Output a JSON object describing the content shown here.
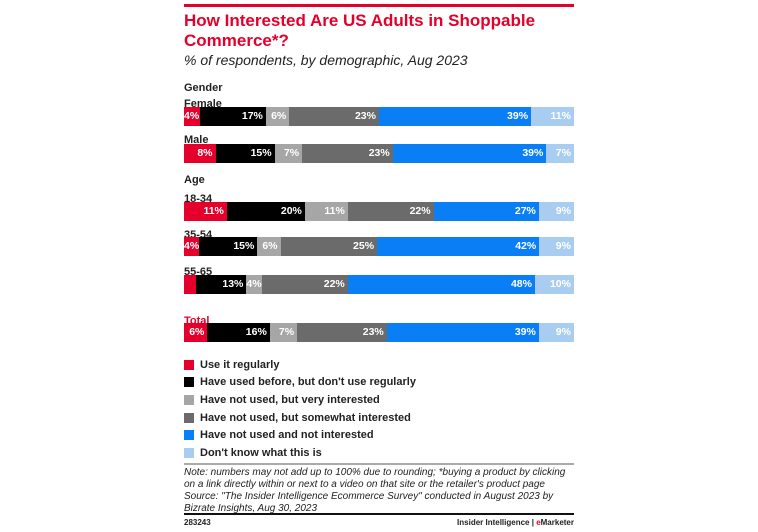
{
  "header": {
    "title": "How Interested Are US Adults in Shoppable Commerce*?",
    "subtitle": "% of respondents, by demographic, Aug 2023"
  },
  "chart_data": {
    "type": "bar",
    "orientation": "horizontal",
    "stacked": true,
    "title": "How Interested Are US Adults in Shoppable Commerce*?",
    "subtitle": "% of respondents, by demographic, Aug 2023",
    "groups": [
      {
        "name": "Gender",
        "categories": [
          "Female",
          "Male"
        ]
      },
      {
        "name": "Age",
        "categories": [
          "18-34",
          "35-54",
          "55-65"
        ]
      },
      {
        "name": "Total",
        "categories": [
          "Total"
        ]
      }
    ],
    "categories": [
      "Female",
      "Male",
      "18-34",
      "35-54",
      "55-65",
      "Total"
    ],
    "series": [
      {
        "name": "Use it regularly",
        "color": "#e4002b",
        "values": [
          4,
          8,
          11,
          4,
          3,
          6
        ]
      },
      {
        "name": "Have used before, but don't use regularly",
        "color": "#000000",
        "values": [
          17,
          15,
          20,
          15,
          13,
          16
        ]
      },
      {
        "name": "Have not used, but very interested",
        "color": "#a6a6a6",
        "values": [
          6,
          7,
          11,
          6,
          4,
          7
        ]
      },
      {
        "name": "Have not used, but somewhat interested",
        "color": "#6b6b6b",
        "values": [
          23,
          23,
          22,
          25,
          22,
          23
        ]
      },
      {
        "name": "Have not used and not interested",
        "color": "#0a7ff5",
        "values": [
          39,
          39,
          27,
          42,
          48,
          39
        ]
      },
      {
        "name": "Don't know what this is",
        "color": "#a9cdf0",
        "values": [
          11,
          7,
          9,
          9,
          10,
          9
        ]
      }
    ],
    "legend": "bottom"
  },
  "footer": {
    "note": "Note: numbers may not add up to 100% due to rounding; *buying a product by clicking on a link directly within or next to a video on that site or the retailer's product page",
    "source": "Source: \"The Insider Intelligence Ecommerce Survey\" conducted in August 2023 by Bizrate Insights, Aug 30, 2023",
    "id": "283243",
    "brand1": "Insider Intelligence",
    "sep": " | ",
    "brand2_e": "e",
    "brand2_rest": "Marketer"
  }
}
